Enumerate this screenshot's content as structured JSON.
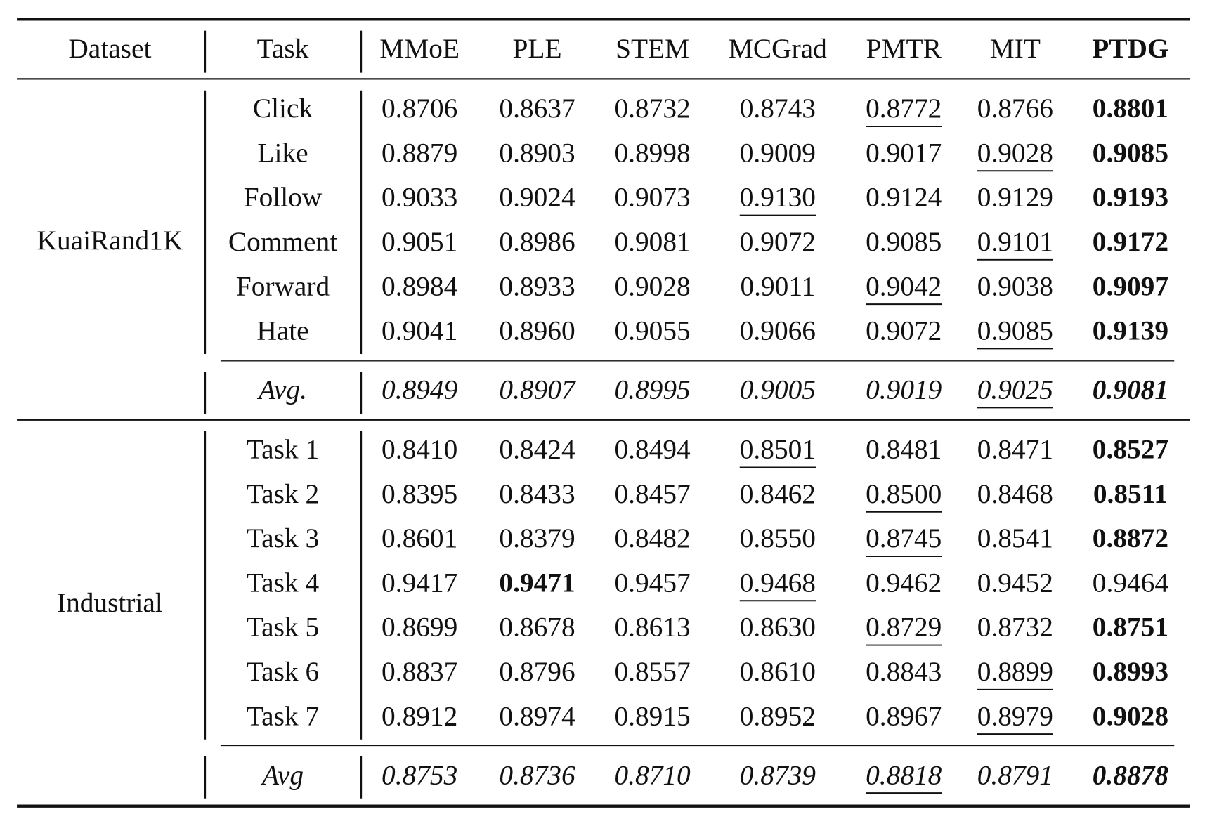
{
  "table": {
    "header": [
      "Dataset",
      "Task",
      "MMoE",
      "PLE",
      "STEM",
      "MCGrad",
      "PMTR",
      "MIT",
      "PTDG"
    ],
    "groups": [
      {
        "dataset": "KuaiRand1K",
        "rows": [
          {
            "task": "Click",
            "values": [
              "0.8706",
              "0.8637",
              "0.8732",
              "0.8743",
              "0.8772",
              "0.8766",
              "0.8801"
            ]
          },
          {
            "task": "Like",
            "values": [
              "0.8879",
              "0.8903",
              "0.8998",
              "0.9009",
              "0.9017",
              "0.9028",
              "0.9085"
            ]
          },
          {
            "task": "Follow",
            "values": [
              "0.9033",
              "0.9024",
              "0.9073",
              "0.9130",
              "0.9124",
              "0.9129",
              "0.9193"
            ]
          },
          {
            "task": "Comment",
            "values": [
              "0.9051",
              "0.8986",
              "0.9081",
              "0.9072",
              "0.9085",
              "0.9101",
              "0.9172"
            ]
          },
          {
            "task": "Forward",
            "values": [
              "0.8984",
              "0.8933",
              "0.9028",
              "0.9011",
              "0.9042",
              "0.9038",
              "0.9097"
            ]
          },
          {
            "task": "Hate",
            "values": [
              "0.9041",
              "0.8960",
              "0.9055",
              "0.9066",
              "0.9072",
              "0.9085",
              "0.9139"
            ]
          }
        ],
        "avg": {
          "task": "Avg.",
          "values": [
            "0.8949",
            "0.8907",
            "0.8995",
            "0.9005",
            "0.9019",
            "0.9025",
            "0.9081"
          ]
        }
      },
      {
        "dataset": "Industrial",
        "rows": [
          {
            "task": "Task 1",
            "values": [
              "0.8410",
              "0.8424",
              "0.8494",
              "0.8501",
              "0.8481",
              "0.8471",
              "0.8527"
            ]
          },
          {
            "task": "Task 2",
            "values": [
              "0.8395",
              "0.8433",
              "0.8457",
              "0.8462",
              "0.8500",
              "0.8468",
              "0.8511"
            ]
          },
          {
            "task": "Task 3",
            "values": [
              "0.8601",
              "0.8379",
              "0.8482",
              "0.8550",
              "0.8745",
              "0.8541",
              "0.8872"
            ]
          },
          {
            "task": "Task 4",
            "values": [
              "0.9417",
              "0.9471",
              "0.9457",
              "0.9468",
              "0.9462",
              "0.9452",
              "0.9464"
            ]
          },
          {
            "task": "Task 5",
            "values": [
              "0.8699",
              "0.8678",
              "0.8613",
              "0.8630",
              "0.8729",
              "0.8732",
              "0.8751"
            ]
          },
          {
            "task": "Task 6",
            "values": [
              "0.8837",
              "0.8796",
              "0.8557",
              "0.8610",
              "0.8843",
              "0.8899",
              "0.8993"
            ]
          },
          {
            "task": "Task 7",
            "values": [
              "0.8912",
              "0.8974",
              "0.8915",
              "0.8952",
              "0.8967",
              "0.8979",
              "0.9028"
            ]
          }
        ],
        "avg": {
          "task": "Avg",
          "values": [
            "0.8753",
            "0.8736",
            "0.8710",
            "0.8739",
            "0.8818",
            "0.8791",
            "0.8878"
          ]
        }
      }
    ]
  }
}
